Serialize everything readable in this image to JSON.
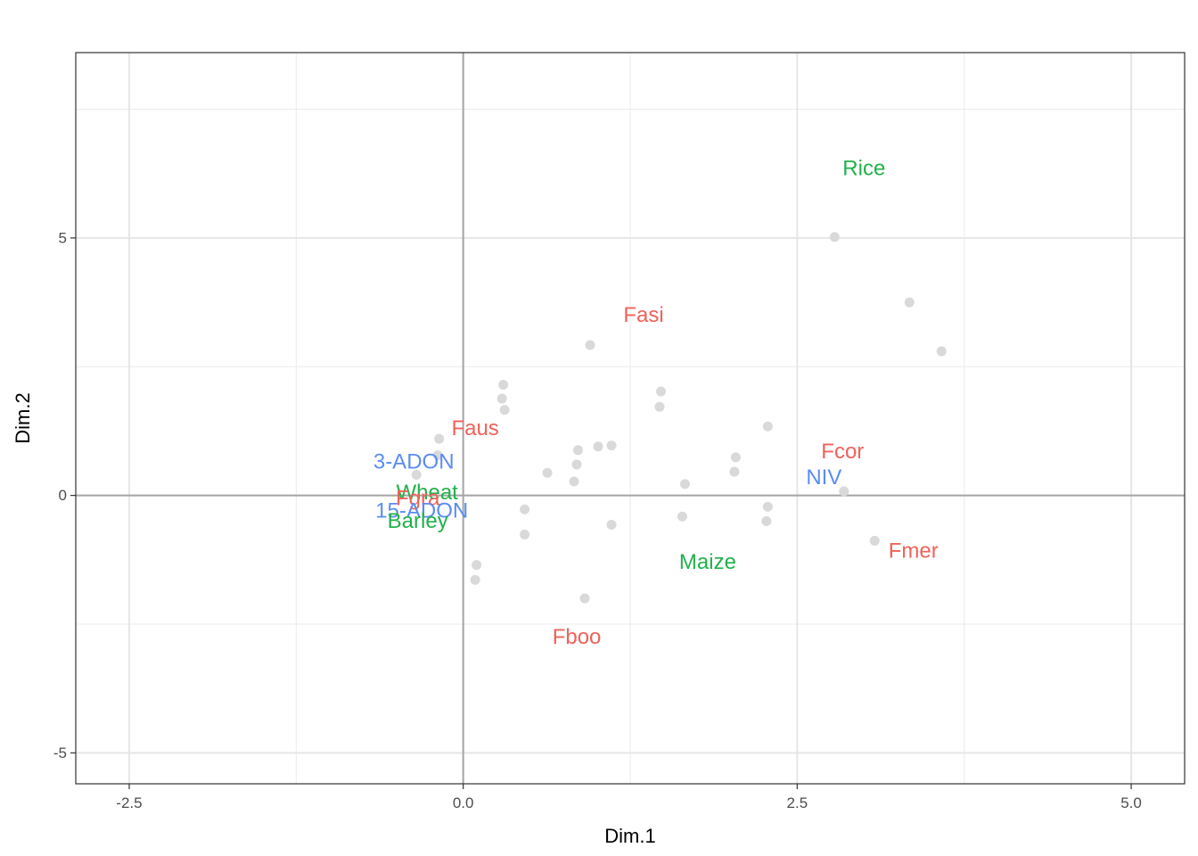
{
  "chart_data": {
    "type": "scatter",
    "xlabel": "Dim.1",
    "ylabel": "Dim.2",
    "xlim": [
      -2.9,
      5.4
    ],
    "ylim": [
      -5.6,
      8.6
    ],
    "x_ticks": [
      -2.5,
      0.0,
      2.5,
      5.0
    ],
    "x_tick_labels": [
      "-2.5",
      "0.0",
      "2.5",
      "5.0"
    ],
    "y_ticks": [
      -5,
      0,
      5
    ],
    "y_tick_labels": [
      "-5",
      "0",
      "5"
    ],
    "grid": true,
    "reference_lines": {
      "x": 0,
      "y": 0
    },
    "colors": {
      "species": "#F0625A",
      "crops": "#22B14C",
      "toxins": "#5B8CF2",
      "points": "#D9D9D9"
    },
    "points": [
      {
        "x": 2.78,
        "y": 5.02
      },
      {
        "x": 3.34,
        "y": 3.75
      },
      {
        "x": 3.58,
        "y": 2.8
      },
      {
        "x": 0.95,
        "y": 2.92
      },
      {
        "x": 1.48,
        "y": 2.02
      },
      {
        "x": 1.47,
        "y": 1.72
      },
      {
        "x": 0.3,
        "y": 2.15
      },
      {
        "x": 0.29,
        "y": 1.88
      },
      {
        "x": 0.31,
        "y": 1.66
      },
      {
        "x": 2.28,
        "y": 1.34
      },
      {
        "x": -0.18,
        "y": 1.1
      },
      {
        "x": -0.19,
        "y": 0.78
      },
      {
        "x": 0.86,
        "y": 0.88
      },
      {
        "x": 1.01,
        "y": 0.95
      },
      {
        "x": 1.11,
        "y": 0.97
      },
      {
        "x": 2.04,
        "y": 0.74
      },
      {
        "x": 2.03,
        "y": 0.46
      },
      {
        "x": 0.63,
        "y": 0.44
      },
      {
        "x": 0.85,
        "y": 0.6
      },
      {
        "x": -0.35,
        "y": 0.4
      },
      {
        "x": 0.83,
        "y": 0.27
      },
      {
        "x": 1.66,
        "y": 0.22
      },
      {
        "x": 2.85,
        "y": 0.08
      },
      {
        "x": 2.28,
        "y": -0.22
      },
      {
        "x": 0.46,
        "y": -0.27
      },
      {
        "x": 1.64,
        "y": -0.41
      },
      {
        "x": 2.27,
        "y": -0.5
      },
      {
        "x": 1.11,
        "y": -0.57
      },
      {
        "x": 0.46,
        "y": -0.76
      },
      {
        "x": 3.08,
        "y": -0.88
      },
      {
        "x": 0.1,
        "y": -1.35
      },
      {
        "x": 0.09,
        "y": -1.64
      },
      {
        "x": 0.91,
        "y": -2.0
      }
    ],
    "labels": [
      {
        "text": "Rice",
        "x": 3.0,
        "y": 6.35,
        "group": "crops"
      },
      {
        "text": "Fasi",
        "x": 1.35,
        "y": 3.5,
        "group": "species"
      },
      {
        "text": "Faus",
        "x": 0.09,
        "y": 1.3,
        "group": "species"
      },
      {
        "text": "Fcor",
        "x": 2.84,
        "y": 0.85,
        "group": "species"
      },
      {
        "text": "3-ADON",
        "x": -0.37,
        "y": 0.65,
        "group": "toxins"
      },
      {
        "text": "NIV",
        "x": 2.7,
        "y": 0.35,
        "group": "toxins"
      },
      {
        "text": "Wheat",
        "x": -0.27,
        "y": 0.05,
        "group": "crops"
      },
      {
        "text": "Fgra",
        "x": -0.34,
        "y": -0.06,
        "group": "species"
      },
      {
        "text": "15-ADON",
        "x": -0.31,
        "y": -0.3,
        "group": "toxins"
      },
      {
        "text": "Barley",
        "x": -0.34,
        "y": -0.5,
        "group": "crops"
      },
      {
        "text": "Fmer",
        "x": 3.37,
        "y": -1.08,
        "group": "species"
      },
      {
        "text": "Maize",
        "x": 1.83,
        "y": -1.3,
        "group": "crops"
      },
      {
        "text": "Fboo",
        "x": 0.85,
        "y": -2.75,
        "group": "species"
      }
    ]
  }
}
